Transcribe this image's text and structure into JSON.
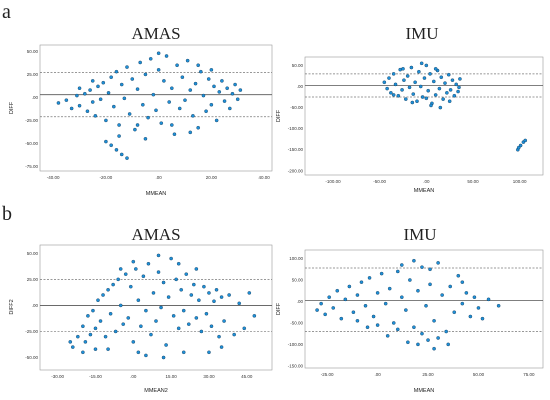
{
  "panels": [
    {
      "letter": "a"
    },
    {
      "letter": "b"
    }
  ],
  "chart_data": [
    {
      "type": "scatter",
      "panel": "a",
      "title": "AMAS",
      "xlabel": "MMEAN",
      "ylabel": "DIFF",
      "xlim": [
        -45,
        43
      ],
      "ylim": [
        -80,
        57
      ],
      "xticks": [
        -40,
        -20,
        0,
        20,
        40
      ],
      "xtick_labels": [
        "-40.00",
        "-20.00",
        ".00",
        "20.00",
        "40.00"
      ],
      "yticks": [
        50,
        25,
        0,
        -25,
        -50,
        -75
      ],
      "ytick_labels": [
        "50.00",
        "25.00",
        ".00",
        "-25.00",
        "-50.00",
        "-75.00"
      ],
      "mean_line": 3,
      "loa": [
        27,
        -21
      ],
      "points": [
        [
          -38,
          -6
        ],
        [
          -35,
          -3
        ],
        [
          -33,
          -12
        ],
        [
          -31,
          2
        ],
        [
          -30,
          -9
        ],
        [
          -28,
          4
        ],
        [
          -27,
          -15
        ],
        [
          -26,
          8
        ],
        [
          -25,
          -5
        ],
        [
          -24,
          -20
        ],
        [
          -23,
          12
        ],
        [
          -22,
          -2
        ],
        [
          -21,
          16
        ],
        [
          -20,
          -25
        ],
        [
          -19,
          5
        ],
        [
          -18,
          22
        ],
        [
          -17,
          -10
        ],
        [
          -16,
          28
        ],
        [
          -15,
          -30
        ],
        [
          -14,
          14
        ],
        [
          -13,
          -1
        ],
        [
          -12,
          33
        ],
        [
          -11,
          -18
        ],
        [
          -10,
          20
        ],
        [
          -9,
          -35
        ],
        [
          -8,
          9
        ],
        [
          -7,
          38
        ],
        [
          -6,
          -8
        ],
        [
          -5,
          25
        ],
        [
          -4,
          -22
        ],
        [
          -3,
          42
        ],
        [
          -2,
          3
        ],
        [
          -1,
          -14
        ],
        [
          0,
          30
        ],
        [
          1,
          -28
        ],
        [
          2,
          18
        ],
        [
          3,
          45
        ],
        [
          4,
          -5
        ],
        [
          5,
          10
        ],
        [
          6,
          -40
        ],
        [
          7,
          35
        ],
        [
          8,
          -12
        ],
        [
          9,
          22
        ],
        [
          10,
          -3
        ],
        [
          11,
          40
        ],
        [
          12,
          8
        ],
        [
          13,
          -20
        ],
        [
          14,
          15
        ],
        [
          15,
          -33
        ],
        [
          16,
          28
        ],
        [
          17,
          2
        ],
        [
          18,
          -15
        ],
        [
          19,
          20
        ],
        [
          20,
          -8
        ],
        [
          21,
          12
        ],
        [
          22,
          -25
        ],
        [
          23,
          6
        ],
        [
          24,
          18
        ],
        [
          25,
          -4
        ],
        [
          26,
          10
        ],
        [
          27,
          -12
        ],
        [
          28,
          4
        ],
        [
          29,
          14
        ],
        [
          30,
          -2
        ],
        [
          31,
          8
        ],
        [
          -20,
          -48
        ],
        [
          -18,
          -52
        ],
        [
          -16,
          -57
        ],
        [
          -14,
          -62
        ],
        [
          -12,
          -66
        ],
        [
          -25,
          18
        ],
        [
          -15,
          -42
        ],
        [
          -5,
          -45
        ],
        [
          5,
          -30
        ],
        [
          15,
          35
        ],
        [
          0,
          48
        ],
        [
          -8,
          -30
        ],
        [
          12,
          -38
        ],
        [
          -30,
          10
        ],
        [
          20,
          30
        ]
      ]
    },
    {
      "type": "scatter",
      "panel": "a",
      "title": "IMU",
      "xlabel": "MMEAN",
      "ylabel": "DIFF",
      "xlim": [
        -130,
        125
      ],
      "ylim": [
        -210,
        70
      ],
      "xticks": [
        -100,
        -50,
        0,
        50,
        100
      ],
      "xtick_labels": [
        "-100.00",
        "-50.00",
        ".00",
        "50.00",
        "100.00"
      ],
      "yticks": [
        50,
        0,
        -50,
        -100,
        -150,
        -200
      ],
      "ytick_labels": [
        "50.00",
        ".00",
        "-50.00",
        "-100.00",
        "-150.00",
        "-200.00"
      ],
      "mean_line": 2,
      "loa": [
        30,
        -25
      ],
      "points": [
        [
          -45,
          10
        ],
        [
          -42,
          -5
        ],
        [
          -40,
          20
        ],
        [
          -38,
          -15
        ],
        [
          -35,
          30
        ],
        [
          -33,
          5
        ],
        [
          -30,
          -22
        ],
        [
          -28,
          40
        ],
        [
          -26,
          -8
        ],
        [
          -24,
          15
        ],
        [
          -22,
          -30
        ],
        [
          -20,
          25
        ],
        [
          -18,
          -2
        ],
        [
          -16,
          45
        ],
        [
          -14,
          -18
        ],
        [
          -12,
          10
        ],
        [
          -10,
          -35
        ],
        [
          -8,
          35
        ],
        [
          -6,
          0
        ],
        [
          -4,
          -25
        ],
        [
          -2,
          20
        ],
        [
          0,
          50
        ],
        [
          2,
          -10
        ],
        [
          4,
          30
        ],
        [
          6,
          -40
        ],
        [
          8,
          12
        ],
        [
          10,
          -20
        ],
        [
          12,
          38
        ],
        [
          14,
          -5
        ],
        [
          16,
          22
        ],
        [
          18,
          -30
        ],
        [
          20,
          8
        ],
        [
          22,
          -15
        ],
        [
          24,
          28
        ],
        [
          26,
          -8
        ],
        [
          28,
          15
        ],
        [
          30,
          -22
        ],
        [
          32,
          5
        ],
        [
          34,
          -12
        ],
        [
          36,
          18
        ],
        [
          -5,
          55
        ],
        [
          5,
          -45
        ],
        [
          15,
          -50
        ],
        [
          -15,
          -38
        ],
        [
          25,
          -35
        ],
        [
          -25,
          42
        ],
        [
          0,
          -28
        ],
        [
          10,
          42
        ],
        [
          -35,
          -20
        ],
        [
          35,
          -2
        ],
        [
          98,
          -150
        ],
        [
          101,
          -140
        ],
        [
          104,
          -132
        ],
        [
          106,
          -128
        ],
        [
          99,
          -145
        ]
      ]
    },
    {
      "type": "scatter",
      "panel": "b",
      "title": "AMAS",
      "xlabel": "MMEAN2",
      "ylabel": "DIFF2",
      "xlim": [
        -37,
        55
      ],
      "ylim": [
        -62,
        58
      ],
      "xticks": [
        -30,
        -15,
        0,
        15,
        30,
        45
      ],
      "xtick_labels": [
        "-30.00",
        "-15.00",
        ".00",
        "15.00",
        "30.00",
        "45.00"
      ],
      "yticks": [
        50,
        25,
        0,
        -25,
        -50
      ],
      "ytick_labels": [
        "50.00",
        "25.00",
        ".00",
        "-25.00",
        "-50.00"
      ],
      "mean_line": 0,
      "loa": [
        25,
        -25
      ],
      "points": [
        [
          -24,
          -40
        ],
        [
          -22,
          -30
        ],
        [
          -20,
          -20
        ],
        [
          -19,
          -35
        ],
        [
          -18,
          -10
        ],
        [
          -17,
          -28
        ],
        [
          -16,
          -5
        ],
        [
          -15,
          -22
        ],
        [
          -14,
          5
        ],
        [
          -13,
          -15
        ],
        [
          -12,
          10
        ],
        [
          -11,
          -30
        ],
        [
          -10,
          15
        ],
        [
          -9,
          -8
        ],
        [
          -8,
          20
        ],
        [
          -7,
          -25
        ],
        [
          -6,
          25
        ],
        [
          -5,
          0
        ],
        [
          -4,
          -18
        ],
        [
          -3,
          30
        ],
        [
          -2,
          -12
        ],
        [
          -1,
          18
        ],
        [
          0,
          -35
        ],
        [
          1,
          35
        ],
        [
          2,
          5
        ],
        [
          3,
          -20
        ],
        [
          4,
          28
        ],
        [
          5,
          -5
        ],
        [
          6,
          40
        ],
        [
          7,
          -28
        ],
        [
          8,
          12
        ],
        [
          9,
          -15
        ],
        [
          10,
          32
        ],
        [
          11,
          -2
        ],
        [
          12,
          22
        ],
        [
          13,
          -38
        ],
        [
          14,
          8
        ],
        [
          15,
          45
        ],
        [
          16,
          -10
        ],
        [
          17,
          25
        ],
        [
          18,
          -22
        ],
        [
          19,
          15
        ],
        [
          20,
          -5
        ],
        [
          21,
          30
        ],
        [
          22,
          -18
        ],
        [
          23,
          10
        ],
        [
          24,
          20
        ],
        [
          25,
          -12
        ],
        [
          26,
          5
        ],
        [
          27,
          -25
        ],
        [
          28,
          18
        ],
        [
          29,
          -8
        ],
        [
          30,
          12
        ],
        [
          31,
          -20
        ],
        [
          32,
          4
        ],
        [
          33,
          15
        ],
        [
          34,
          -30
        ],
        [
          35,
          8
        ],
        [
          36,
          -15
        ],
        [
          38,
          10
        ],
        [
          40,
          -28
        ],
        [
          42,
          2
        ],
        [
          44,
          -22
        ],
        [
          46,
          12
        ],
        [
          48,
          -10
        ],
        [
          -20,
          -45
        ],
        [
          -10,
          -42
        ],
        [
          5,
          -48
        ],
        [
          20,
          -45
        ],
        [
          35,
          -40
        ],
        [
          0,
          42
        ],
        [
          10,
          48
        ],
        [
          -5,
          35
        ],
        [
          18,
          40
        ],
        [
          -15,
          -42
        ],
        [
          25,
          35
        ],
        [
          -25,
          -35
        ],
        [
          30,
          -45
        ],
        [
          12,
          -50
        ],
        [
          2,
          -45
        ]
      ]
    },
    {
      "type": "scatter",
      "panel": "b",
      "title": "IMU",
      "xlabel": "MMEAN",
      "ylabel": "DIFF",
      "xlim": [
        -36,
        82
      ],
      "ylim": [
        -155,
        120
      ],
      "xticks": [
        -25,
        0,
        25,
        50,
        75
      ],
      "xtick_labels": [
        "-25.00",
        ".00",
        "25.00",
        "50.00",
        "75.00"
      ],
      "yticks": [
        100,
        50,
        0,
        -50,
        -100,
        -150
      ],
      "ytick_labels": [
        "100.00",
        "50.00",
        ".00",
        "-50.00",
        "-100.00",
        "-150.00"
      ],
      "mean_line": 2,
      "loa": [
        78,
        -70
      ],
      "points": [
        [
          -30,
          -20
        ],
        [
          -28,
          -5
        ],
        [
          -26,
          -30
        ],
        [
          -24,
          10
        ],
        [
          -22,
          -15
        ],
        [
          -20,
          25
        ],
        [
          -18,
          -40
        ],
        [
          -16,
          5
        ],
        [
          -14,
          35
        ],
        [
          -12,
          -25
        ],
        [
          -10,
          15
        ],
        [
          -8,
          45
        ],
        [
          -6,
          -10
        ],
        [
          -4,
          55
        ],
        [
          -2,
          -35
        ],
        [
          0,
          20
        ],
        [
          2,
          65
        ],
        [
          4,
          -5
        ],
        [
          6,
          30
        ],
        [
          8,
          -50
        ],
        [
          10,
          70
        ],
        [
          12,
          10
        ],
        [
          14,
          -20
        ],
        [
          16,
          50
        ],
        [
          18,
          -60
        ],
        [
          20,
          25
        ],
        [
          22,
          80
        ],
        [
          24,
          -10
        ],
        [
          26,
          40
        ],
        [
          28,
          -45
        ],
        [
          30,
          90
        ],
        [
          32,
          15
        ],
        [
          34,
          -70
        ],
        [
          36,
          35
        ],
        [
          38,
          -25
        ],
        [
          40,
          60
        ],
        [
          42,
          -5
        ],
        [
          44,
          20
        ],
        [
          46,
          -35
        ],
        [
          48,
          10
        ],
        [
          5,
          -80
        ],
        [
          15,
          -95
        ],
        [
          20,
          -100
        ],
        [
          25,
          -90
        ],
        [
          30,
          -85
        ],
        [
          35,
          -100
        ],
        [
          28,
          -110
        ],
        [
          22,
          -75
        ],
        [
          10,
          -65
        ],
        [
          0,
          -55
        ],
        [
          -5,
          -60
        ],
        [
          18,
          95
        ],
        [
          26,
          75
        ],
        [
          12,
          85
        ],
        [
          -10,
          -45
        ],
        [
          50,
          -15
        ],
        [
          55,
          5
        ],
        [
          60,
          -10
        ],
        [
          52,
          -40
        ],
        [
          42,
          45
        ]
      ]
    }
  ]
}
